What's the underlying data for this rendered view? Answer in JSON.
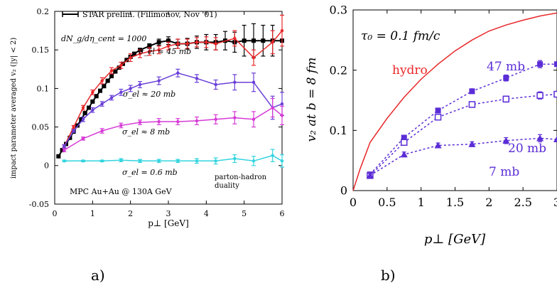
{
  "panel_labels": {
    "a": "a)",
    "b": "b)"
  },
  "chart_data": [
    {
      "type": "line",
      "panel": "a",
      "xlabel": "p⊥ [GeV]",
      "ylabel": "impact parameter averaged v₂ (|y| < 2)",
      "xlim": [
        0,
        6
      ],
      "ylim": [
        -0.05,
        0.2
      ],
      "x_ticks": [
        "0",
        "1",
        "2",
        "3",
        "4",
        "5",
        "6"
      ],
      "y_ticks": [
        "-0.05",
        "0",
        "0.05",
        "0.1",
        "0.15",
        "0.2"
      ],
      "grid": false,
      "legend_position": "top-left",
      "annotations": [
        {
          "text": "dN_g/dη_cent = 1000"
        },
        {
          "text": "σ_el ≈ 45 mb"
        },
        {
          "text": "σ_el ≈ 20 mb"
        },
        {
          "text": "σ_el ≈ 8 mb"
        },
        {
          "text": "σ_el = 0.6 mb"
        },
        {
          "text": "parton-hadron"
        },
        {
          "text": "duality"
        },
        {
          "text": "MPC Au+Au @ 130A GeV"
        }
      ],
      "series": [
        {
          "name": "STAR prelim. (Filimonov, Nov '01)",
          "color": "#000000",
          "marker": "square",
          "x": [
            0.1,
            0.2,
            0.3,
            0.4,
            0.5,
            0.6,
            0.7,
            0.8,
            0.9,
            1.0,
            1.1,
            1.2,
            1.3,
            1.4,
            1.5,
            1.6,
            1.7,
            1.8,
            1.9,
            2.0,
            2.1,
            2.25,
            2.5,
            2.75,
            3.0,
            3.25,
            3.5,
            3.75,
            4.0,
            4.25,
            4.5,
            4.75,
            5.0,
            5.25,
            5.5,
            5.75,
            6.0
          ],
          "y": [
            0.012,
            0.02,
            0.028,
            0.036,
            0.044,
            0.052,
            0.06,
            0.068,
            0.075,
            0.083,
            0.09,
            0.097,
            0.103,
            0.11,
            0.116,
            0.122,
            0.127,
            0.132,
            0.137,
            0.141,
            0.145,
            0.15,
            0.155,
            0.16,
            0.162,
            0.158,
            0.158,
            0.16,
            0.16,
            0.16,
            0.162,
            0.16,
            0.162,
            0.162,
            0.162,
            0.162,
            0.162
          ],
          "err": [
            0.001,
            0.001,
            0.001,
            0.001,
            0.001,
            0.001,
            0.001,
            0.001,
            0.001,
            0.001,
            0.001,
            0.001,
            0.001,
            0.001,
            0.001,
            0.001,
            0.001,
            0.001,
            0.001,
            0.001,
            0.002,
            0.002,
            0.003,
            0.004,
            0.005,
            0.006,
            0.007,
            0.008,
            0.01,
            0.01,
            0.012,
            0.013,
            0.02,
            0.022,
            0.02,
            0.02,
            0.0
          ]
        },
        {
          "name": "σ_el ≈ 45 mb",
          "color": "#e8272a",
          "marker": "cross",
          "x": [
            0.25,
            0.5,
            0.75,
            1.0,
            1.25,
            1.5,
            1.75,
            2.0,
            2.25,
            2.5,
            2.75,
            3.0,
            3.25,
            3.5,
            3.75,
            4.0,
            4.25,
            4.75,
            5.25,
            5.75,
            6.0
          ],
          "y": [
            0.025,
            0.05,
            0.075,
            0.095,
            0.11,
            0.123,
            0.13,
            0.14,
            0.145,
            0.148,
            0.15,
            0.155,
            0.158,
            0.158,
            0.16,
            0.16,
            0.158,
            0.165,
            0.14,
            0.16,
            0.175
          ],
          "err": [
            0.002,
            0.002,
            0.003,
            0.003,
            0.004,
            0.004,
            0.004,
            0.005,
            0.005,
            0.005,
            0.005,
            0.005,
            0.006,
            0.006,
            0.006,
            0.007,
            0.008,
            0.01,
            0.01,
            0.015,
            0.02
          ]
        },
        {
          "name": "σ_el ≈ 20 mb",
          "color": "#6a3fd8",
          "marker": "cross",
          "x": [
            0.25,
            0.5,
            0.75,
            1.0,
            1.25,
            1.5,
            1.75,
            2.0,
            2.25,
            2.75,
            3.25,
            3.75,
            4.25,
            4.75,
            5.25,
            5.75,
            6.0
          ],
          "y": [
            0.025,
            0.045,
            0.06,
            0.072,
            0.08,
            0.088,
            0.095,
            0.1,
            0.105,
            0.11,
            0.12,
            0.113,
            0.105,
            0.108,
            0.108,
            0.075,
            0.08
          ],
          "err": [
            0.002,
            0.002,
            0.003,
            0.003,
            0.003,
            0.003,
            0.004,
            0.004,
            0.004,
            0.005,
            0.005,
            0.005,
            0.006,
            0.01,
            0.012,
            0.015,
            0.015
          ]
        },
        {
          "name": "σ_el ≈ 8 mb",
          "color": "#d63ad6",
          "marker": "cross",
          "x": [
            0.25,
            0.75,
            1.25,
            1.75,
            2.25,
            2.75,
            3.25,
            3.75,
            4.25,
            4.75,
            5.25,
            5.75,
            6.0
          ],
          "y": [
            0.02,
            0.035,
            0.045,
            0.052,
            0.056,
            0.057,
            0.057,
            0.058,
            0.06,
            0.062,
            0.06,
            0.075,
            0.065
          ],
          "err": [
            0.002,
            0.002,
            0.003,
            0.003,
            0.003,
            0.004,
            0.004,
            0.005,
            0.006,
            0.008,
            0.01,
            0.012,
            0.012
          ]
        },
        {
          "name": "σ_el = 0.6 mb",
          "color": "#33d4e0",
          "marker": "cross",
          "x": [
            0.25,
            0.75,
            1.25,
            1.75,
            2.25,
            2.75,
            3.25,
            3.75,
            4.25,
            4.75,
            5.25,
            5.75,
            6.0
          ],
          "y": [
            0.006,
            0.006,
            0.006,
            0.007,
            0.006,
            0.006,
            0.006,
            0.006,
            0.006,
            0.009,
            0.006,
            0.013,
            0.006
          ],
          "err": [
            0.001,
            0.001,
            0.001,
            0.002,
            0.002,
            0.002,
            0.002,
            0.003,
            0.004,
            0.005,
            0.006,
            0.008,
            0.008
          ]
        }
      ]
    },
    {
      "type": "line",
      "panel": "b",
      "xlabel": "p⊥ [GeV]",
      "ylabel": "v₂ at b = 8 fm",
      "xlim": [
        0,
        3
      ],
      "ylim": [
        0,
        0.3
      ],
      "x_ticks": [
        "0",
        "0.5",
        "1",
        "1.5",
        "2",
        "2.5",
        "3"
      ],
      "y_ticks": [
        "0",
        "0.1",
        "0.2",
        "0.3"
      ],
      "grid": false,
      "annotations": [
        {
          "text": "τ₀ = 0.1 fm/c"
        },
        {
          "text": "hydro"
        },
        {
          "text": "47 mb"
        },
        {
          "text": "20 mb"
        },
        {
          "text": "7 mb"
        }
      ],
      "series": [
        {
          "name": "hydro",
          "color": "#e8272a",
          "style": "solid",
          "x": [
            0,
            0.1,
            0.25,
            0.5,
            0.75,
            1.0,
            1.25,
            1.5,
            1.75,
            2.0,
            2.25,
            2.5,
            2.75,
            3.0
          ],
          "y": [
            0,
            0.035,
            0.08,
            0.12,
            0.155,
            0.185,
            0.21,
            0.232,
            0.25,
            0.265,
            0.275,
            0.283,
            0.29,
            0.295
          ]
        },
        {
          "name": "47 mb",
          "color": "#5b2dd6",
          "style": "dotted",
          "marker": "filled-square",
          "x": [
            0.25,
            0.75,
            1.25,
            1.75,
            2.25,
            2.75,
            3.0
          ],
          "y": [
            0.027,
            0.088,
            0.133,
            0.165,
            0.187,
            0.21,
            0.21
          ],
          "err": [
            0.003,
            0.004,
            0.004,
            0.004,
            0.005,
            0.006,
            0
          ]
        },
        {
          "name": "20 mb",
          "color": "#5b2dd6",
          "style": "dotted",
          "marker": "open-square",
          "x": [
            0.25,
            0.75,
            1.25,
            1.75,
            2.25,
            2.75,
            3.0
          ],
          "y": [
            0.025,
            0.08,
            0.122,
            0.143,
            0.152,
            0.158,
            0.16
          ],
          "err": [
            0.003,
            0.004,
            0.004,
            0.004,
            0.005,
            0.006,
            0
          ]
        },
        {
          "name": "7 mb",
          "color": "#5b2dd6",
          "style": "dotted",
          "marker": "filled-triangle",
          "x": [
            0.25,
            0.75,
            1.25,
            1.75,
            2.25,
            2.75,
            3.0
          ],
          "y": [
            0.025,
            0.06,
            0.075,
            0.077,
            0.083,
            0.087,
            0.085
          ],
          "err": [
            0.003,
            0.004,
            0.004,
            0.004,
            0.005,
            0.006,
            0
          ]
        }
      ]
    }
  ]
}
